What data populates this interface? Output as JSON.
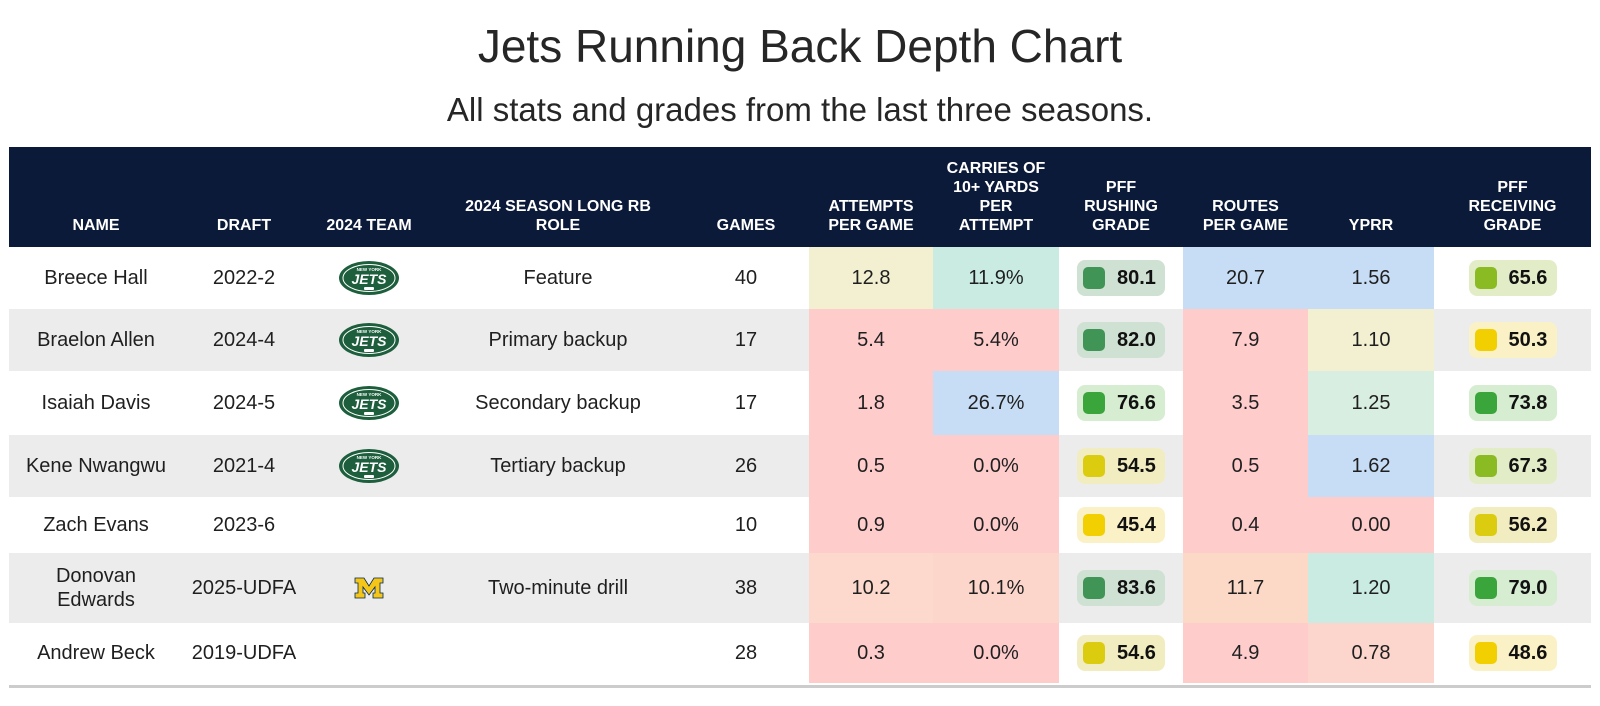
{
  "title": "Jets Running Back Depth Chart",
  "subtitle": "All stats and grades from the last three seasons.",
  "colors": {
    "header_bg": "#0c1a3a",
    "stripe": "#ececec",
    "heat_red": "#ffcccc",
    "heat_green": "#c9ebe2",
    "heat_blue": "#c7dcf5",
    "heat_yellow": "#f2f0d0",
    "grade_green": "#3aa53a",
    "grade_lime": "#8bbb22",
    "grade_yellow": "#f2cf00"
  },
  "chart_data": {
    "type": "table",
    "columns": [
      "NAME",
      "DRAFT",
      "2024 TEAM",
      "2024 SEASON LONG RB ROLE",
      "GAMES",
      "ATTEMPTS PER GAME",
      "CARRIES OF 10+ YARDS PER ATTEMPT",
      "PFF RUSHING GRADE",
      "ROUTES PER GAME",
      "YPRR",
      "PFF RECEIVING GRADE"
    ],
    "rows": [
      {
        "name": "Breece Hall",
        "draft": "2022-2",
        "team_logo": "jets-logo",
        "role": "Feature",
        "games": "40",
        "attempts_per_game": "12.8",
        "carries_10plus_pct": "11.9%",
        "rushing_grade": "80.1",
        "routes_per_game": "20.7",
        "yprr": "1.56",
        "receiving_grade": "65.6"
      },
      {
        "name": "Braelon Allen",
        "draft": "2024-4",
        "team_logo": "jets-logo",
        "role": "Primary backup",
        "games": "17",
        "attempts_per_game": "5.4",
        "carries_10plus_pct": "5.4%",
        "rushing_grade": "82.0",
        "routes_per_game": "7.9",
        "yprr": "1.10",
        "receiving_grade": "50.3"
      },
      {
        "name": "Isaiah Davis",
        "draft": "2024-5",
        "team_logo": "jets-logo",
        "role": "Secondary backup",
        "games": "17",
        "attempts_per_game": "1.8",
        "carries_10plus_pct": "26.7%",
        "rushing_grade": "76.6",
        "routes_per_game": "3.5",
        "yprr": "1.25",
        "receiving_grade": "73.8"
      },
      {
        "name": "Kene Nwangwu",
        "draft": "2021-4",
        "team_logo": "jets-logo",
        "role": "Tertiary backup",
        "games": "26",
        "attempts_per_game": "0.5",
        "carries_10plus_pct": "0.0%",
        "rushing_grade": "54.5",
        "routes_per_game": "0.5",
        "yprr": "1.62",
        "receiving_grade": "67.3"
      },
      {
        "name": "Zach Evans",
        "draft": "2023-6",
        "team_logo": "",
        "role": "",
        "games": "10",
        "attempts_per_game": "0.9",
        "carries_10plus_pct": "0.0%",
        "rushing_grade": "45.4",
        "routes_per_game": "0.4",
        "yprr": "0.00",
        "receiving_grade": "56.2"
      },
      {
        "name": "Donovan Edwards",
        "draft": "2025-UDFA",
        "team_logo": "michigan-logo",
        "role": "Two-minute drill",
        "games": "38",
        "attempts_per_game": "10.2",
        "carries_10plus_pct": "10.1%",
        "rushing_grade": "83.6",
        "routes_per_game": "11.7",
        "yprr": "1.20",
        "receiving_grade": "79.0"
      },
      {
        "name": "Andrew Beck",
        "draft": "2019-UDFA",
        "team_logo": "",
        "role": "",
        "games": "28",
        "attempts_per_game": "0.3",
        "carries_10plus_pct": "0.0%",
        "rushing_grade": "54.6",
        "routes_per_game": "4.9",
        "yprr": "0.78",
        "receiving_grade": "48.6"
      }
    ]
  }
}
